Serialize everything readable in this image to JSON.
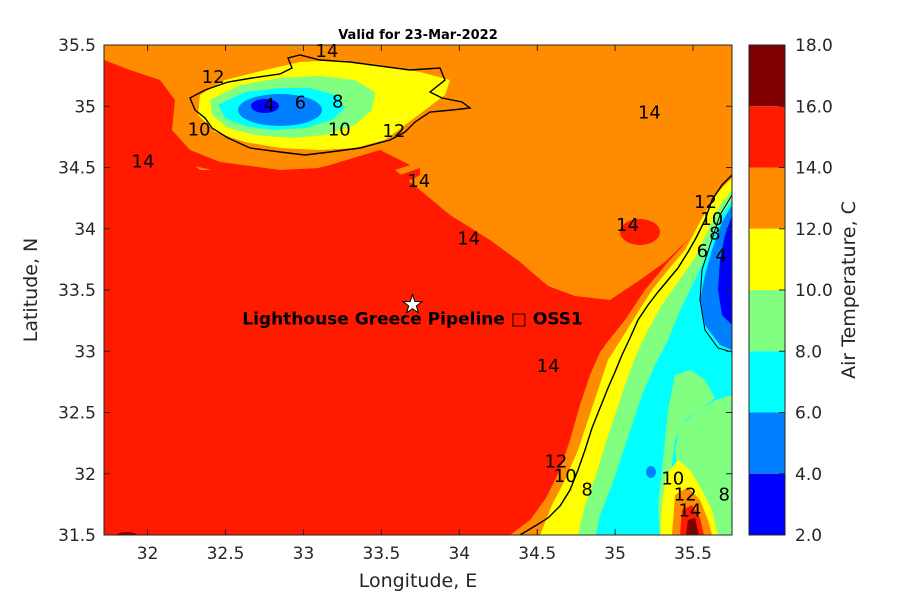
{
  "title": "Valid for 23-Mar-2022",
  "x_axis": {
    "label": "Longitude, E",
    "range": [
      31.72,
      35.75
    ],
    "ticks": [
      {
        "value": 32,
        "label": "32"
      },
      {
        "value": 32.5,
        "label": "32.5"
      },
      {
        "value": 33,
        "label": "33"
      },
      {
        "value": 33.5,
        "label": "33.5"
      },
      {
        "value": 34,
        "label": "34"
      },
      {
        "value": 34.5,
        "label": "34.5"
      },
      {
        "value": 35,
        "label": "35"
      },
      {
        "value": 35.5,
        "label": "35.5"
      }
    ]
  },
  "y_axis": {
    "label": "Latitude, N",
    "range": [
      31.5,
      35.5
    ],
    "ticks": [
      {
        "value": 35.5,
        "label": "35.5"
      },
      {
        "value": 35,
        "label": "35"
      },
      {
        "value": 34.5,
        "label": "34.5"
      },
      {
        "value": 34,
        "label": "34"
      },
      {
        "value": 33.5,
        "label": "33.5"
      },
      {
        "value": 33,
        "label": "33"
      },
      {
        "value": 32.5,
        "label": "32.5"
      },
      {
        "value": 32,
        "label": "32"
      },
      {
        "value": 31.5,
        "label": "31.5"
      }
    ]
  },
  "colorbar": {
    "label": "Air Temperature, C",
    "ticks": [
      {
        "value": 18,
        "label": "18.0"
      },
      {
        "value": 16,
        "label": "16.0"
      },
      {
        "value": 14,
        "label": "14.0"
      },
      {
        "value": 12,
        "label": "12.0"
      },
      {
        "value": 10,
        "label": "10.0"
      },
      {
        "value": 8,
        "label": "8.0"
      },
      {
        "value": 6,
        "label": "6.0"
      },
      {
        "value": 4,
        "label": "4.0"
      },
      {
        "value": 2,
        "label": "2.0"
      }
    ],
    "bands": [
      {
        "from": 16,
        "to": 18,
        "color": "#800000"
      },
      {
        "from": 14,
        "to": 16,
        "color": "#ff1a00"
      },
      {
        "from": 12,
        "to": 14,
        "color": "#ff8c00"
      },
      {
        "from": 10,
        "to": 12,
        "color": "#ffff00"
      },
      {
        "from": 8,
        "to": 10,
        "color": "#80ff80"
      },
      {
        "from": 6,
        "to": 8,
        "color": "#00ffff"
      },
      {
        "from": 4,
        "to": 6,
        "color": "#0080ff"
      },
      {
        "from": 2,
        "to": 4,
        "color": "#0000ff"
      }
    ]
  },
  "site": {
    "name": "Lighthouse Greece Pipeline □ OSS1",
    "lon": 33.7,
    "lat": 33.38,
    "marker": "star-icon"
  },
  "contour_labels": [
    {
      "text": "14",
      "lon": 33.15,
      "lat": 35.45
    },
    {
      "text": "12",
      "lon": 32.42,
      "lat": 35.24
    },
    {
      "text": "4",
      "lon": 32.78,
      "lat": 35.01
    },
    {
      "text": "6",
      "lon": 32.98,
      "lat": 35.03
    },
    {
      "text": "8",
      "lon": 33.22,
      "lat": 35.04
    },
    {
      "text": "10",
      "lon": 32.33,
      "lat": 34.81
    },
    {
      "text": "10",
      "lon": 33.23,
      "lat": 34.81
    },
    {
      "text": "12",
      "lon": 33.58,
      "lat": 34.8
    },
    {
      "text": "14",
      "lon": 35.22,
      "lat": 34.95
    },
    {
      "text": "14",
      "lon": 31.97,
      "lat": 34.55
    },
    {
      "text": "14",
      "lon": 33.74,
      "lat": 34.39
    },
    {
      "text": "14",
      "lon": 35.08,
      "lat": 34.03
    },
    {
      "text": "14",
      "lon": 34.06,
      "lat": 33.92
    },
    {
      "text": "12",
      "lon": 35.58,
      "lat": 34.22
    },
    {
      "text": "10",
      "lon": 35.62,
      "lat": 34.08
    },
    {
      "text": "8",
      "lon": 35.64,
      "lat": 33.96
    },
    {
      "text": "6",
      "lon": 35.56,
      "lat": 33.82
    },
    {
      "text": "4",
      "lon": 35.68,
      "lat": 33.78
    },
    {
      "text": "14",
      "lon": 34.57,
      "lat": 32.88
    },
    {
      "text": "12",
      "lon": 34.62,
      "lat": 32.1
    },
    {
      "text": "10",
      "lon": 34.68,
      "lat": 31.98
    },
    {
      "text": "8",
      "lon": 34.82,
      "lat": 31.87
    },
    {
      "text": "10",
      "lon": 35.37,
      "lat": 31.96
    },
    {
      "text": "12",
      "lon": 35.45,
      "lat": 31.83
    },
    {
      "text": "14",
      "lon": 35.48,
      "lat": 31.7
    },
    {
      "text": "8",
      "lon": 35.7,
      "lat": 31.83
    }
  ]
}
